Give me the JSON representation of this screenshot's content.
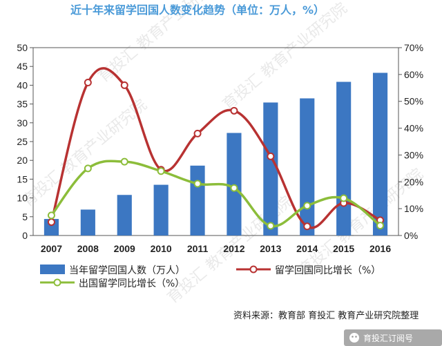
{
  "chart_data": {
    "type": "bar",
    "title": "近十年来留学回国人数变化趋势（单位：万人，%）",
    "categories": [
      "2007",
      "2008",
      "2009",
      "2010",
      "2011",
      "2012",
      "2013",
      "2014",
      "2015",
      "2016"
    ],
    "y_left": {
      "min": 0,
      "max": 50,
      "ticks": [
        "0",
        "5",
        "10",
        "15",
        "20",
        "25",
        "30",
        "35",
        "40",
        "45",
        "50"
      ]
    },
    "y_right": {
      "min": 0,
      "max": 70,
      "ticks": [
        "0%",
        "10%",
        "20%",
        "30%",
        "40%",
        "50%",
        "60%",
        "70%"
      ]
    },
    "series": [
      {
        "name": "当年留学回国人数（万人）",
        "type": "bar",
        "axis": "left",
        "color": "#3c77c2",
        "values": [
          4.4,
          6.9,
          10.8,
          13.5,
          18.6,
          27.3,
          35.4,
          36.5,
          40.9,
          43.3
        ]
      },
      {
        "name": "留学回国同比增长（%）",
        "type": "line",
        "axis": "right",
        "color": "#b83232",
        "values": [
          5.0,
          57.0,
          56.0,
          24.5,
          38.0,
          46.5,
          29.5,
          3.4,
          12.1,
          5.7
        ]
      },
      {
        "name": "出国留学同比增长（%）",
        "type": "line",
        "axis": "right",
        "color": "#8cbd3a",
        "values": [
          7.5,
          25.0,
          27.5,
          24.0,
          19.3,
          17.7,
          3.6,
          11.1,
          13.9,
          3.7
        ]
      }
    ],
    "grid": false,
    "legend_position": "bottom",
    "source": "资料来源：教育部 育投汇 教育产业研究院整理",
    "watermark": "育投汇 教育产业研究院",
    "footer_label": "育投汇订阅号"
  }
}
